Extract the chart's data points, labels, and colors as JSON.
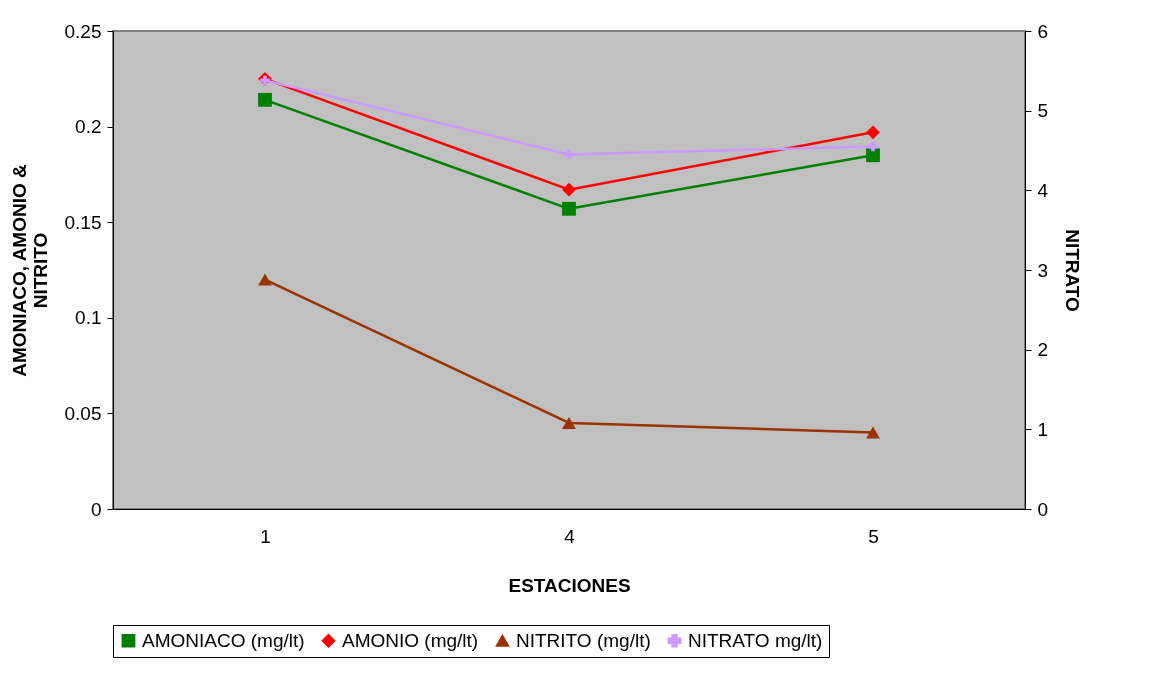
{
  "chart_data": {
    "type": "line",
    "xlabel": "ESTACIONES",
    "ylabel": "AMONIACO, AMONIO & NITRITO",
    "y2label": "NITRATO",
    "categories": [
      "1",
      "4",
      "5"
    ],
    "series": [
      {
        "name": "AMONIACO (mg/lt)",
        "color": "#008000",
        "marker": "square",
        "values": [
          0.214,
          0.157,
          0.185
        ]
      },
      {
        "name": "AMONIO (mg/lt)",
        "color": "#ff0000",
        "marker": "diamond",
        "values": [
          0.225,
          0.167,
          0.197
        ]
      },
      {
        "name": "NITRITO (mg/lt)",
        "color": "#993300",
        "marker": "triangle",
        "values": [
          0.12,
          0.045,
          0.04
        ]
      },
      {
        "name": "NITRATO mg/lt)",
        "color": "#cc99ff",
        "marker": "cross",
        "axis": "y2",
        "values": [
          5.38,
          4.45,
          4.55
        ]
      }
    ],
    "ylim": [
      0,
      0.25
    ],
    "yticks": [
      0,
      0.05,
      0.1,
      0.15,
      0.2,
      0.25
    ],
    "y2lim": [
      0,
      6
    ],
    "y2ticks": [
      0,
      1,
      2,
      3,
      4,
      5,
      6
    ],
    "grid": false,
    "legend": "bottom"
  }
}
